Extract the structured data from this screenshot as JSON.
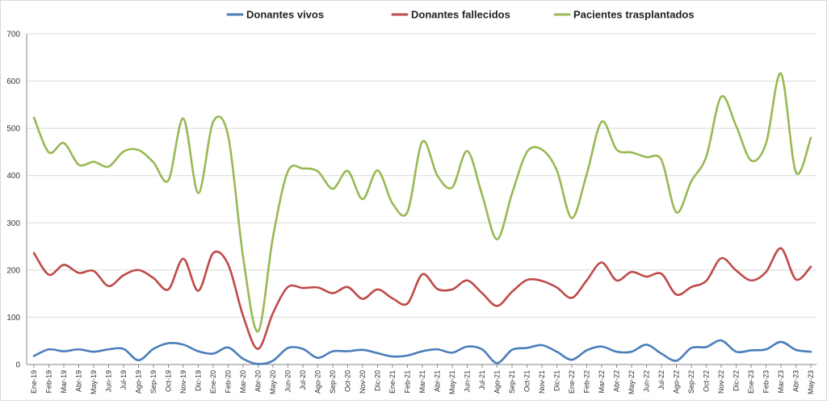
{
  "chart_data": {
    "type": "line",
    "title": "",
    "xlabel": "",
    "ylabel": "",
    "ylim": [
      0,
      700
    ],
    "yticks": [
      0,
      100,
      200,
      300,
      400,
      500,
      600,
      700
    ],
    "grid": true,
    "legend_position": "top",
    "categories": [
      "Ene-19",
      "Feb-19",
      "Mar-19",
      "Abr-19",
      "May-19",
      "Jun-19",
      "Jul-19",
      "Ago-19",
      "Sep-19",
      "Oct-19",
      "Nov-19",
      "Dic-19",
      "Ene-20",
      "Feb-20",
      "Mar-20",
      "Abr-20",
      "May-20",
      "Jun-20",
      "Jul-20",
      "Ago-20",
      "Sep-20",
      "Oct-20",
      "Nov-20",
      "Dic-20",
      "Ene-21",
      "Feb-21",
      "Mar-21",
      "Abr-21",
      "May-21",
      "Jun-21",
      "Jul-21",
      "Ago-21",
      "Sep-21",
      "Oct-21",
      "Nov-21",
      "Dic-21",
      "Ene-22",
      "Feb-22",
      "Mar-22",
      "Abr-22",
      "May-22",
      "Jun-22",
      "Jul-22",
      "Ago-22",
      "Sep-22",
      "Oct-22",
      "Nov-22",
      "Dic-22",
      "Ene-23",
      "Feb-23",
      "Mar-23",
      "Abr-23",
      "May-23"
    ],
    "series": [
      {
        "name": "Donantes vivos",
        "color": "#4a7ebb",
        "values": [
          18,
          32,
          28,
          32,
          27,
          32,
          33,
          9,
          33,
          45,
          42,
          28,
          23,
          36,
          12,
          1,
          8,
          35,
          33,
          14,
          28,
          28,
          31,
          24,
          17,
          19,
          28,
          32,
          25,
          38,
          32,
          3,
          31,
          35,
          41,
          27,
          10,
          30,
          38,
          27,
          27,
          42,
          23,
          8,
          35,
          37,
          51,
          27,
          30,
          32,
          48,
          31,
          27
        ]
      },
      {
        "name": "Donantes fallecidos",
        "color": "#be4b48",
        "values": [
          236,
          190,
          211,
          194,
          198,
          166,
          189,
          200,
          183,
          159,
          224,
          156,
          236,
          212,
          103,
          33,
          109,
          164,
          162,
          163,
          151,
          164,
          139,
          159,
          140,
          129,
          191,
          160,
          159,
          178,
          151,
          124,
          154,
          179,
          177,
          163,
          141,
          178,
          216,
          178,
          196,
          186,
          192,
          148,
          164,
          177,
          225,
          199,
          178,
          196,
          246,
          180,
          207
        ]
      },
      {
        "name": "Pacientes trasplantados",
        "color": "#98b954",
        "values": [
          523,
          449,
          469,
          423,
          429,
          419,
          451,
          454,
          428,
          390,
          521,
          363,
          514,
          484,
          228,
          70,
          270,
          409,
          415,
          409,
          372,
          410,
          350,
          411,
          341,
          323,
          472,
          400,
          375,
          452,
          359,
          265,
          362,
          450,
          455,
          411,
          310,
          403,
          514,
          455,
          449,
          439,
          433,
          322,
          388,
          440,
          567,
          505,
          432,
          468,
          616,
          407,
          480
        ]
      }
    ]
  }
}
